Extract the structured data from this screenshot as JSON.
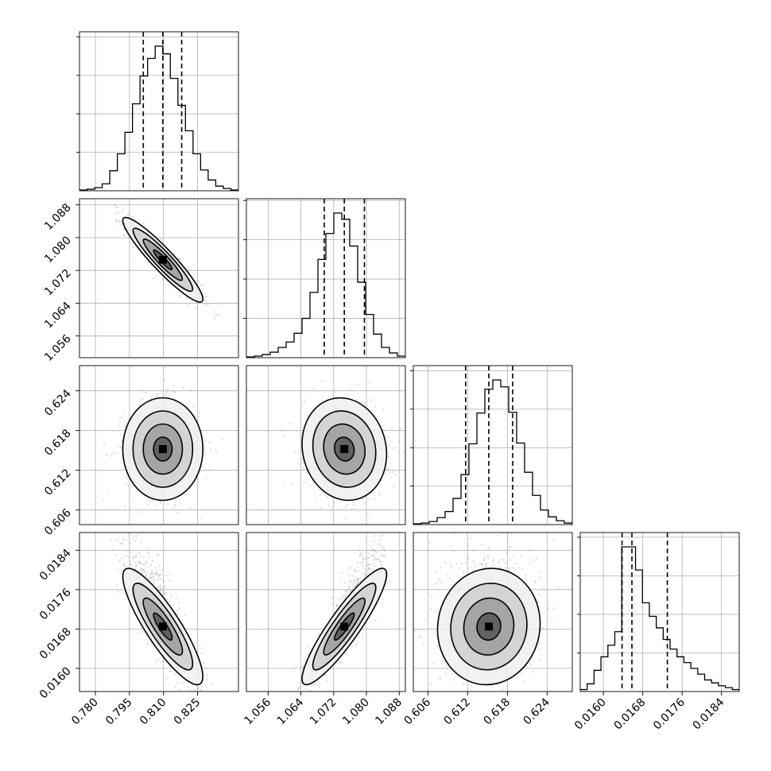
{
  "chart_data": {
    "type": "corner",
    "parameters": [
      "",
      "",
      "",
      ""
    ],
    "grid": true,
    "ranges": [
      [
        0.773,
        0.843
      ],
      [
        1.0507,
        1.0895
      ],
      [
        0.6038,
        0.6278
      ],
      [
        0.01553,
        0.01876
      ]
    ],
    "ticks": [
      [
        "0.780",
        "0.795",
        "0.810",
        "0.825"
      ],
      [
        "1.056",
        "1.064",
        "1.072",
        "1.080",
        "1.088"
      ],
      [
        "0.606",
        "0.612",
        "0.618",
        "0.624"
      ],
      [
        "0.0160",
        "0.0168",
        "0.0176",
        "0.0184"
      ]
    ],
    "tick_values": [
      [
        0.78,
        0.795,
        0.81,
        0.825
      ],
      [
        1.056,
        1.064,
        1.072,
        1.08,
        1.088
      ],
      [
        0.606,
        0.612,
        0.618,
        0.624
      ],
      [
        0.016,
        0.0168,
        0.0176,
        0.0184
      ]
    ],
    "marginals": [
      {
        "quantiles": [
          0.8011,
          0.8097,
          0.818
        ],
        "counts": [
          1,
          2,
          4,
          9,
          26,
          48,
          76,
          113,
          149,
          172,
          188,
          178,
          146,
          111,
          78,
          48,
          27,
          14,
          6,
          3,
          1
        ]
      },
      {
        "quantiles": [
          1.0697,
          1.0746,
          1.0795
        ],
        "counts": [
          1,
          2,
          4,
          7,
          13,
          20,
          31,
          50,
          83,
          125,
          158,
          184,
          176,
          142,
          96,
          55,
          30,
          13,
          6,
          2
        ]
      },
      {
        "quantiles": [
          0.6117,
          0.6152,
          0.6188
        ],
        "counts": [
          1,
          2,
          4,
          9,
          17,
          34,
          65,
          105,
          145,
          176,
          188,
          179,
          146,
          106,
          68,
          38,
          19,
          10,
          5,
          2
        ]
      },
      {
        "quantiles": [
          0.01638,
          0.01658,
          0.0173
        ],
        "counts": [
          2,
          8,
          22,
          36,
          48,
          62,
          150,
          150,
          126,
          92,
          78,
          66,
          54,
          44,
          36,
          30,
          24,
          18,
          12,
          9,
          6,
          4,
          2
        ]
      }
    ],
    "joints": [
      {
        "row": 1,
        "col": 0,
        "mean": [
          0.8097,
          1.0746
        ],
        "sd": [
          0.0082,
          0.0048
        ],
        "rho": -0.93,
        "skew_y": 0
      },
      {
        "row": 2,
        "col": 0,
        "mean": [
          0.8097,
          0.6152
        ],
        "sd": [
          0.0082,
          0.0036
        ],
        "rho": 0.0,
        "skew_y": 0
      },
      {
        "row": 2,
        "col": 1,
        "mean": [
          1.0746,
          0.6152
        ],
        "sd": [
          0.0048,
          0.0036
        ],
        "rho": -0.1,
        "skew_y": 0
      },
      {
        "row": 3,
        "col": 0,
        "mean": [
          0.8097,
          0.01685
        ],
        "sd": [
          0.0082,
          0.00055
        ],
        "rho": -0.86,
        "skew_y": 0.7
      },
      {
        "row": 3,
        "col": 1,
        "mean": [
          1.0746,
          0.01685
        ],
        "sd": [
          0.0048,
          0.00055
        ],
        "rho": 0.9,
        "skew_y": 0.7
      },
      {
        "row": 3,
        "col": 2,
        "mean": [
          0.6152,
          0.01685
        ],
        "sd": [
          0.0036,
          0.00055
        ],
        "rho": 0.05,
        "skew_y": 0.7
      }
    ],
    "colors": {
      "line": "#000000",
      "points": "#9a9a9a",
      "grid": "#b0b0b0",
      "shade_dark": "#000000"
    }
  }
}
